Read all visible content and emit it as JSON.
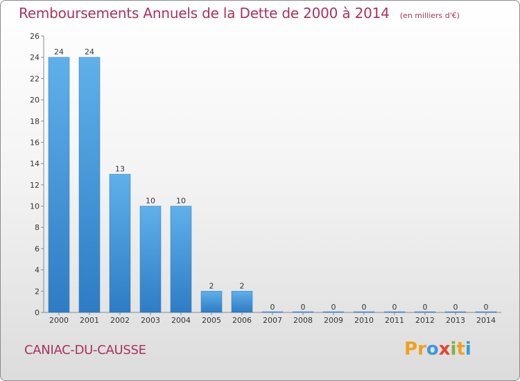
{
  "header": {
    "title": "Remboursements Annuels de la Dette de 2000 à 2014",
    "unit": "(en milliers d'€)"
  },
  "footer": {
    "commune": "CANIAC-DU-CAUSSE",
    "logo_letters": [
      "P",
      "r",
      "o",
      "x",
      "i",
      "t",
      "i"
    ],
    "logo_colors": [
      "#f0a020",
      "#f0a020",
      "#3a9ad9",
      "#e8432e",
      "#7cb342",
      "#f0a020",
      "#3a9ad9"
    ]
  },
  "chart_data": {
    "type": "bar",
    "categories": [
      "2000",
      "2001",
      "2002",
      "2003",
      "2004",
      "2005",
      "2006",
      "2007",
      "2008",
      "2009",
      "2010",
      "2011",
      "2012",
      "2013",
      "2014"
    ],
    "values": [
      24,
      24,
      13,
      10,
      10,
      2,
      2,
      0,
      0,
      0,
      0,
      0,
      0,
      0,
      0
    ],
    "title": "Remboursements Annuels de la Dette de 2000 à 2014",
    "subtitle": "(en milliers d'€)",
    "ylim": [
      0,
      26
    ],
    "yticks": [
      0,
      2,
      4,
      6,
      8,
      10,
      12,
      14,
      16,
      18,
      20,
      22,
      24,
      26
    ],
    "grid": false,
    "bar_color": "#4fa3e0",
    "bar_color_dark": "#2b78bf"
  }
}
